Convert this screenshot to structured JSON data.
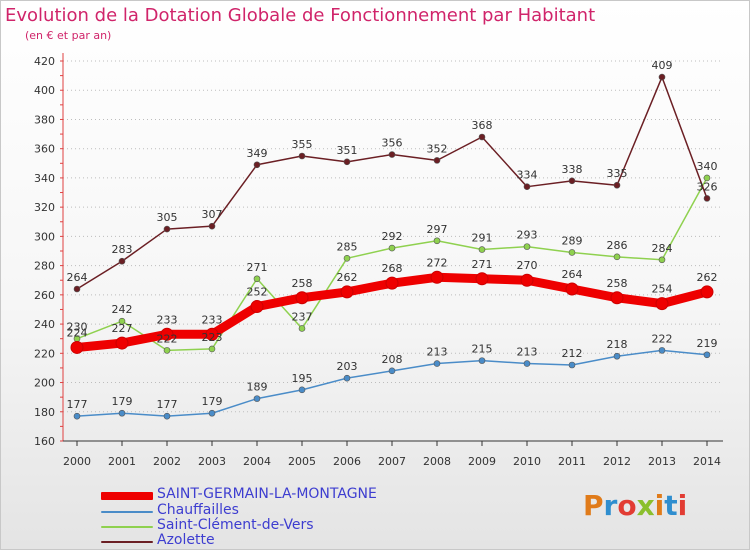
{
  "header": {
    "title": "Evolution de la Dotation Globale de Fonctionnement par Habitant",
    "subtitle": "(en € et par an)"
  },
  "logo": {
    "text": "Proxiti",
    "colors": [
      "#e07b1a",
      "#2f8ecf",
      "#e23c33",
      "#8bbf2d"
    ]
  },
  "chart_data": {
    "type": "line",
    "x": [
      "2000",
      "2001",
      "2002",
      "2003",
      "2004",
      "2005",
      "2006",
      "2007",
      "2008",
      "2009",
      "2010",
      "2011",
      "2012",
      "2013",
      "2014"
    ],
    "yticks": [
      160,
      180,
      200,
      220,
      240,
      260,
      280,
      300,
      320,
      340,
      360,
      380,
      400,
      420
    ],
    "ylim": [
      160,
      420
    ],
    "grid": "dotted horizontal",
    "legend_position": "bottom-left",
    "series": [
      {
        "name": "SAINT-GERMAIN-LA-MONTAGNE",
        "color": "#ee0000",
        "values": [
          224,
          227,
          233,
          233,
          252,
          258,
          262,
          268,
          272,
          271,
          270,
          264,
          258,
          254,
          262
        ]
      },
      {
        "name": "Chauffailles",
        "color": "#4a8cc8",
        "values": [
          177,
          179,
          177,
          179,
          189,
          195,
          203,
          208,
          213,
          215,
          213,
          212,
          218,
          222,
          219
        ]
      },
      {
        "name": "Saint-Clément-de-Vers",
        "color": "#8fd14f",
        "values": [
          230,
          242,
          222,
          223,
          271,
          237,
          285,
          292,
          297,
          291,
          293,
          289,
          286,
          284,
          340
        ]
      },
      {
        "name": "Azolette",
        "color": "#6b1f24",
        "values": [
          264,
          283,
          305,
          307,
          349,
          355,
          351,
          356,
          352,
          368,
          334,
          338,
          335,
          409,
          326
        ]
      }
    ]
  }
}
